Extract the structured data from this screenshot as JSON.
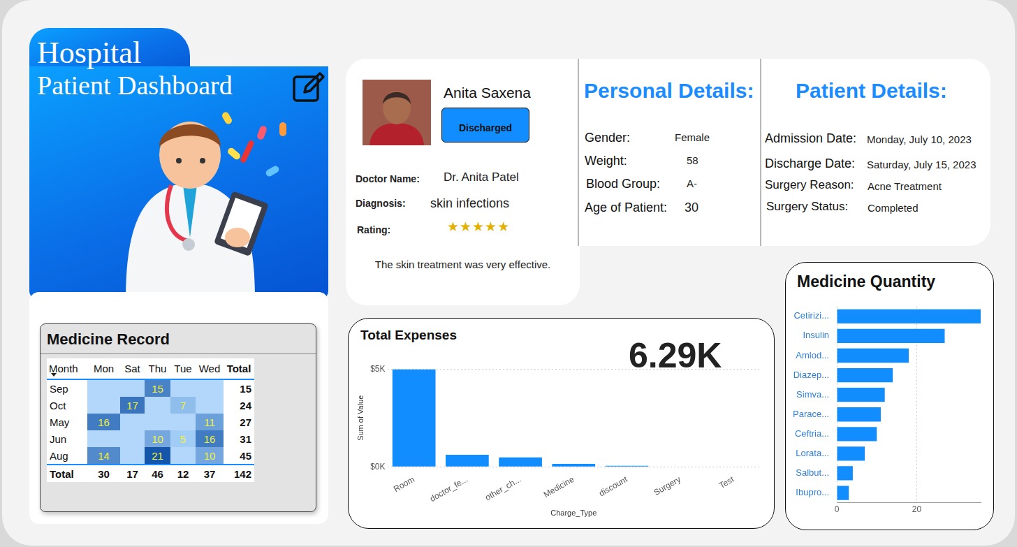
{
  "header": {
    "title": "Hospital",
    "subtitle": "Patient Dashboard"
  },
  "patient": {
    "name": "Anita Saxena",
    "status": "Discharged",
    "fields": [
      {
        "label": "Doctor Name:",
        "value": "Dr. Anita Patel"
      },
      {
        "label": "Diagnosis:",
        "value": "skin infections"
      },
      {
        "label": "Rating:",
        "value": "★★★★★"
      }
    ],
    "review": "The skin treatment was very effective."
  },
  "personal_details": {
    "title": "Personal Details:",
    "fields": [
      {
        "label": "Gender:",
        "value": "Female"
      },
      {
        "label": "Weight:",
        "value": 58
      },
      {
        "label": "Blood Group:",
        "value": "A-"
      },
      {
        "label": "Age of Patient:",
        "value": 30
      }
    ]
  },
  "patient_details": {
    "title": "Patient Details:",
    "fields": [
      {
        "label": "Admission Date:",
        "value": "Monday, July 10, 2023"
      },
      {
        "label": "Discharge Date:",
        "value": "Saturday, July 15, 2023"
      },
      {
        "label": "Surgery Reason:",
        "value": "Acne Treatment"
      },
      {
        "label": "Surgery Status:",
        "value": "Completed"
      }
    ]
  },
  "medicine_record": {
    "title": "Medicine Record",
    "columns": [
      "Month",
      "Mon",
      "Sat",
      "Thu",
      "Tue",
      "Wed",
      "Total"
    ],
    "rows": [
      [
        "Sep",
        null,
        null,
        15,
        null,
        null,
        15
      ],
      [
        "Oct",
        null,
        17,
        null,
        7,
        null,
        24
      ],
      [
        "May",
        16,
        null,
        null,
        null,
        11,
        27
      ],
      [
        "Jun",
        null,
        null,
        10,
        5,
        16,
        31
      ],
      [
        "Aug",
        14,
        null,
        21,
        null,
        10,
        45
      ]
    ],
    "total_row": [
      "Total",
      30,
      17,
      46,
      12,
      37,
      142
    ]
  },
  "chart_data": [
    {
      "type": "bar",
      "title": "Total Expenses",
      "annotations": [
        "6.29K"
      ],
      "xlabel": "Charge_Type",
      "ylabel": "Sum of Value",
      "categories": [
        "Room",
        "doctor_fe...",
        "other_ch...",
        "Medicine",
        "discount",
        "Surgery",
        "Test"
      ],
      "values": [
        4980,
        620,
        480,
        150,
        60,
        0,
        0
      ],
      "color": "#118dff",
      "ylim": [
        0,
        5000
      ],
      "yticks": [
        {
          "value": 0,
          "label": "$0K"
        },
        {
          "value": 5000,
          "label": "$5K"
        }
      ],
      "grid": true
    },
    {
      "type": "bar",
      "orientation": "horizontal",
      "title": "Medicine Quantity",
      "categories": [
        "Cetirizi...",
        "Insulin",
        "Amlod...",
        "Diazep...",
        "Simva...",
        "Parace...",
        "Ceftria...",
        "Lorata...",
        "Salbut...",
        "Ibupro..."
      ],
      "values": [
        36,
        27,
        18,
        14,
        12,
        11,
        10,
        7,
        4,
        3
      ],
      "color": "#118dff",
      "xlim": [
        0,
        36
      ],
      "xticks": [
        0,
        20
      ],
      "grid": true
    }
  ]
}
